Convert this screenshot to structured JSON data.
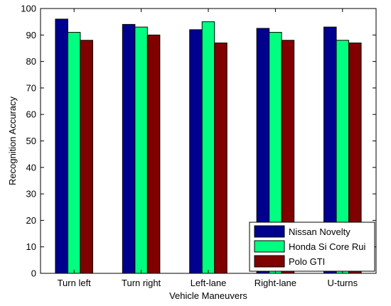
{
  "chart_data": {
    "type": "bar",
    "title": "",
    "xlabel": "Vehicle Maneuvers",
    "ylabel": "Recognition Accuracy",
    "ylim": [
      0,
      100
    ],
    "yticks": [
      0,
      10,
      20,
      30,
      40,
      50,
      60,
      70,
      80,
      90,
      100
    ],
    "grid": false,
    "legend_position": "bottom-right",
    "categories": [
      "Turn left",
      "Turn right",
      "Left-lane",
      "Right-lane",
      "U-turns"
    ],
    "series": [
      {
        "name": "Nissan Novelty",
        "color": "#00008f",
        "values": [
          96,
          94,
          92,
          92.5,
          93
        ]
      },
      {
        "name": "Honda Si Core Rui",
        "color": "#00ff80",
        "values": [
          91,
          93,
          95,
          91,
          88
        ]
      },
      {
        "name": "Polo GTI",
        "color": "#800000",
        "values": [
          88,
          90,
          87,
          88,
          87
        ]
      }
    ]
  }
}
